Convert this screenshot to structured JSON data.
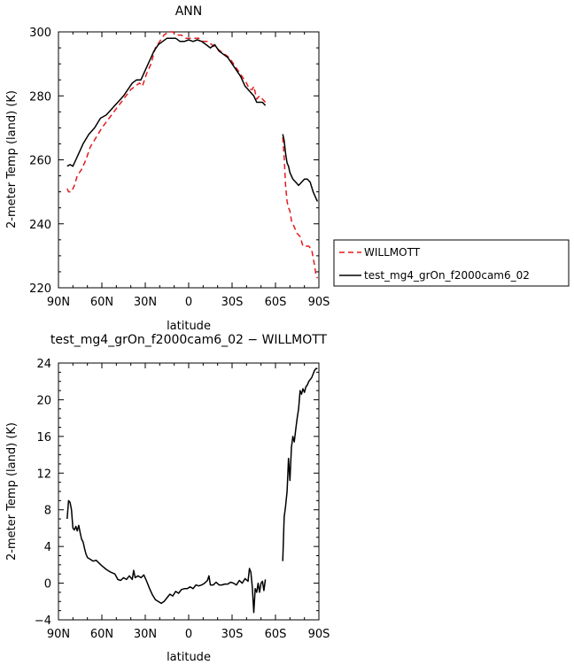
{
  "chart_data": [
    {
      "type": "line",
      "title": "ANN",
      "xlabel": "latitude",
      "ylabel": "2-meter Temp (land) (K)",
      "x_units": "degrees latitude (positive = N, negative = S)",
      "xlim": [
        90,
        -90
      ],
      "ylim": [
        220,
        300
      ],
      "x_ticks": [
        90,
        60,
        30,
        0,
        -30,
        -60,
        -90
      ],
      "x_tick_labels": [
        "90N",
        "60N",
        "30N",
        "0",
        "30S",
        "60S",
        "90S"
      ],
      "y_ticks": [
        220,
        240,
        260,
        280,
        300
      ],
      "y_tick_labels": [
        "220",
        "240",
        "260",
        "280",
        "300"
      ],
      "grid": false,
      "legend": {
        "position": "right",
        "entries": [
          "WILLMOTT",
          "test_mg4_grOn_f2000cam6_02"
        ]
      },
      "series": [
        {
          "name": "WILLMOTT",
          "color": "#e41a1c",
          "dash": "dashed",
          "segments": [
            [
              [
                84,
                251
              ],
              [
                83,
                250
              ],
              [
                81,
                250
              ],
              [
                79,
                252
              ],
              [
                77,
                255
              ],
              [
                74,
                257
              ],
              [
                71,
                260
              ],
              [
                68,
                264
              ],
              [
                64,
                267
              ],
              [
                60,
                270
              ],
              [
                55,
                273
              ],
              [
                50,
                276
              ],
              [
                45,
                279
              ],
              [
                40,
                282
              ],
              [
                37,
                283
              ],
              [
                34,
                284
              ],
              [
                32,
                283
              ],
              [
                29,
                287
              ],
              [
                26,
                290
              ],
              [
                23,
                295
              ],
              [
                20,
                297
              ],
              [
                17,
                299
              ],
              [
                14,
                300
              ],
              [
                11,
                300
              ],
              [
                8,
                299
              ],
              [
                5,
                299
              ],
              [
                2,
                298
              ],
              [
                -1,
                298
              ],
              [
                -4,
                298
              ],
              [
                -7,
                298
              ],
              [
                -10,
                297
              ],
              [
                -13,
                297
              ],
              [
                -16,
                296
              ],
              [
                -19,
                295
              ],
              [
                -22,
                294
              ],
              [
                -25,
                293
              ],
              [
                -28,
                292
              ],
              [
                -31,
                290
              ],
              [
                -34,
                288
              ],
              [
                -37,
                286
              ],
              [
                -40,
                284
              ],
              [
                -42,
                282
              ],
              [
                -44,
                282
              ],
              [
                -45,
                283
              ],
              [
                -47,
                279
              ],
              [
                -49,
                280
              ],
              [
                -51,
                279
              ],
              [
                -53,
                278
              ]
            ],
            [
              [
                -65,
                267
              ],
              [
                -66,
                261
              ],
              [
                -67,
                252
              ],
              [
                -68,
                247
              ],
              [
                -69,
                245
              ],
              [
                -70,
                244
              ],
              [
                -71,
                241
              ],
              [
                -73,
                239
              ],
              [
                -75,
                237
              ],
              [
                -77,
                236
              ],
              [
                -79,
                233
              ],
              [
                -81,
                233
              ],
              [
                -83,
                233
              ],
              [
                -85,
                232
              ],
              [
                -87,
                227
              ],
              [
                -88,
                224
              ],
              [
                -89,
                223
              ]
            ]
          ]
        },
        {
          "name": "test_mg4_grOn_f2000cam6_02",
          "color": "#000000",
          "dash": "solid",
          "segments": [
            [
              [
                84,
                258
              ],
              [
                82,
                258.5
              ],
              [
                80,
                258
              ],
              [
                78,
                260
              ],
              [
                76,
                262
              ],
              [
                73,
                265
              ],
              [
                69,
                268
              ],
              [
                65,
                270
              ],
              [
                61,
                273
              ],
              [
                57,
                274
              ],
              [
                53,
                276
              ],
              [
                49,
                278
              ],
              [
                45,
                280
              ],
              [
                42,
                282
              ],
              [
                39,
                284
              ],
              [
                36,
                285
              ],
              [
                33,
                285
              ],
              [
                30,
                288
              ],
              [
                27,
                291
              ],
              [
                24,
                294
              ],
              [
                21,
                296
              ],
              [
                18,
                297
              ],
              [
                15,
                298
              ],
              [
                12,
                298
              ],
              [
                9,
                298
              ],
              [
                6,
                297
              ],
              [
                3,
                297
              ],
              [
                0,
                297.5
              ],
              [
                -3,
                297
              ],
              [
                -6,
                297.5
              ],
              [
                -9,
                297
              ],
              [
                -12,
                296
              ],
              [
                -15,
                295
              ],
              [
                -18,
                296
              ],
              [
                -21,
                294
              ],
              [
                -24,
                293
              ],
              [
                -27,
                292
              ],
              [
                -30,
                290
              ],
              [
                -33,
                288
              ],
              [
                -36,
                286
              ],
              [
                -39,
                283
              ],
              [
                -41,
                282
              ],
              [
                -43,
                281
              ],
              [
                -45,
                280
              ],
              [
                -47,
                278
              ],
              [
                -49,
                278
              ],
              [
                -51,
                278
              ],
              [
                -53,
                277
              ]
            ],
            [
              [
                -65,
                268
              ],
              [
                -66,
                266
              ],
              [
                -67,
                262
              ],
              [
                -68,
                259
              ],
              [
                -69,
                258
              ],
              [
                -70,
                256
              ],
              [
                -72,
                254
              ],
              [
                -74,
                253
              ],
              [
                -76,
                252
              ],
              [
                -78,
                253
              ],
              [
                -80,
                254
              ],
              [
                -82,
                254
              ],
              [
                -84,
                253
              ],
              [
                -86,
                250
              ],
              [
                -88,
                248
              ],
              [
                -89,
                247
              ]
            ]
          ]
        }
      ]
    },
    {
      "type": "line",
      "title": "test_mg4_grOn_f2000cam6_02 − WILLMOTT",
      "xlabel": "latitude",
      "ylabel": "2-meter Temp (land) (K)",
      "x_units": "degrees latitude (positive = N, negative = S)",
      "xlim": [
        90,
        -90
      ],
      "ylim": [
        -4,
        24
      ],
      "x_ticks": [
        90,
        60,
        30,
        0,
        -30,
        -60,
        -90
      ],
      "x_tick_labels": [
        "90N",
        "60N",
        "30N",
        "0",
        "30S",
        "60S",
        "90S"
      ],
      "y_ticks": [
        -4,
        0,
        4,
        8,
        12,
        16,
        20,
        24
      ],
      "y_tick_labels": [
        "−4",
        "0",
        "4",
        "8",
        "12",
        "16",
        "20",
        "24"
      ],
      "grid": false,
      "series": [
        {
          "color": "#000000",
          "dash": "solid",
          "segments": [
            [
              [
                84,
                7
              ],
              [
                83,
                9
              ],
              [
                82,
                8.8
              ],
              [
                81,
                8
              ],
              [
                80,
                6
              ],
              [
                79,
                5.8
              ],
              [
                78,
                6.2
              ],
              [
                77,
                5.7
              ],
              [
                76,
                6.3
              ],
              [
                75,
                5.5
              ],
              [
                74,
                4.8
              ],
              [
                73,
                4.5
              ],
              [
                72,
                3.8
              ],
              [
                71,
                3.2
              ],
              [
                70,
                2.8
              ],
              [
                68,
                2.6
              ],
              [
                66,
                2.4
              ],
              [
                64,
                2.5
              ],
              [
                62,
                2.2
              ],
              [
                60,
                1.9
              ],
              [
                57,
                1.5
              ],
              [
                54,
                1.2
              ],
              [
                51,
                1.0
              ],
              [
                49,
                0.4
              ],
              [
                47,
                0.3
              ],
              [
                45,
                0.6
              ],
              [
                43,
                0.4
              ],
              [
                41,
                0.8
              ],
              [
                39,
                0.4
              ],
              [
                38,
                1.4
              ],
              [
                37,
                0.6
              ],
              [
                35,
                0.8
              ],
              [
                33,
                0.6
              ],
              [
                31,
                0.9
              ],
              [
                29,
                0.2
              ],
              [
                27,
                -0.6
              ],
              [
                25,
                -1.3
              ],
              [
                23,
                -1.8
              ],
              [
                21,
                -2.0
              ],
              [
                19,
                -2.2
              ],
              [
                17,
                -2.0
              ],
              [
                15,
                -1.6
              ],
              [
                13,
                -1.2
              ],
              [
                11,
                -1.4
              ],
              [
                9,
                -0.9
              ],
              [
                7,
                -1.1
              ],
              [
                5,
                -0.7
              ],
              [
                3,
                -0.6
              ],
              [
                1,
                -0.6
              ],
              [
                -1,
                -0.4
              ],
              [
                -3,
                -0.6
              ],
              [
                -5,
                -0.2
              ],
              [
                -7,
                -0.3
              ],
              [
                -9,
                -0.2
              ],
              [
                -11,
                0
              ],
              [
                -13,
                0.3
              ],
              [
                -14,
                0.8
              ],
              [
                -15,
                -0.2
              ],
              [
                -17,
                -0.2
              ],
              [
                -19,
                0.1
              ],
              [
                -21,
                -0.2
              ],
              [
                -23,
                -0.2
              ],
              [
                -25,
                -0.1
              ],
              [
                -27,
                -0.1
              ],
              [
                -29,
                0.1
              ],
              [
                -31,
                0
              ],
              [
                -33,
                -0.2
              ],
              [
                -35,
                0.3
              ],
              [
                -37,
                0
              ],
              [
                -39,
                0.5
              ],
              [
                -41,
                0.2
              ],
              [
                -42,
                1.6
              ],
              [
                -43,
                1.2
              ],
              [
                -44,
                -0.5
              ],
              [
                -45,
                -3.2
              ],
              [
                -46,
                -0.6
              ],
              [
                -47,
                -1.0
              ],
              [
                -48,
                0
              ],
              [
                -49,
                -1
              ],
              [
                -50,
                0
              ],
              [
                -51,
                0.2
              ],
              [
                -52,
                -0.8
              ],
              [
                -53,
                0.4
              ]
            ],
            [
              [
                -65,
                2.4
              ],
              [
                -66,
                7.2
              ],
              [
                -67,
                8.4
              ],
              [
                -68,
                10
              ],
              [
                -69,
                13.6
              ],
              [
                -70,
                11.2
              ],
              [
                -71,
                14.8
              ],
              [
                -72,
                16
              ],
              [
                -73,
                15.4
              ],
              [
                -74,
                16.8
              ],
              [
                -75,
                18
              ],
              [
                -76,
                19
              ],
              [
                -77,
                21
              ],
              [
                -78,
                20.6
              ],
              [
                -79,
                21.2
              ],
              [
                -80,
                20.8
              ],
              [
                -81,
                21.4
              ],
              [
                -82,
                21.6
              ],
              [
                -83,
                22
              ],
              [
                -85,
                22.4
              ],
              [
                -86,
                22.8
              ],
              [
                -87,
                23.2
              ],
              [
                -88,
                23.4
              ],
              [
                -89,
                23.4
              ]
            ]
          ]
        }
      ]
    }
  ]
}
